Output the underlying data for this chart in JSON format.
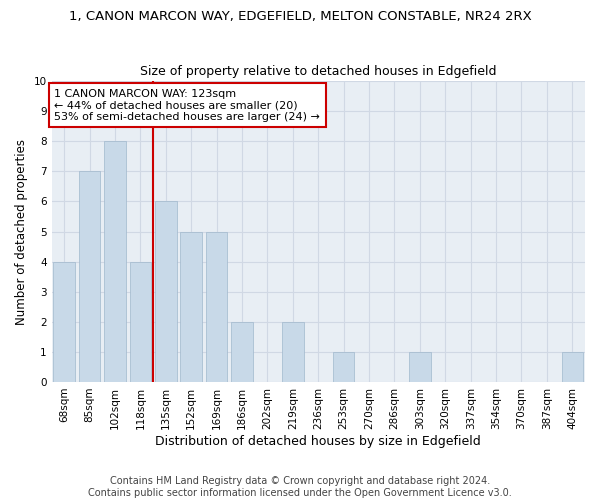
{
  "title": "1, CANON MARCON WAY, EDGEFIELD, MELTON CONSTABLE, NR24 2RX",
  "subtitle": "Size of property relative to detached houses in Edgefield",
  "xlabel": "Distribution of detached houses by size in Edgefield",
  "ylabel": "Number of detached properties",
  "categories": [
    "68sqm",
    "85sqm",
    "102sqm",
    "118sqm",
    "135sqm",
    "152sqm",
    "169sqm",
    "186sqm",
    "202sqm",
    "219sqm",
    "236sqm",
    "253sqm",
    "270sqm",
    "286sqm",
    "303sqm",
    "320sqm",
    "337sqm",
    "354sqm",
    "370sqm",
    "387sqm",
    "404sqm"
  ],
  "values": [
    4,
    7,
    8,
    4,
    6,
    5,
    5,
    2,
    0,
    2,
    0,
    1,
    0,
    0,
    1,
    0,
    0,
    0,
    0,
    0,
    1
  ],
  "bar_color": "#c8d9e8",
  "bar_edgecolor": "#a0b8cc",
  "vline_x": 3.5,
  "vline_color": "#cc0000",
  "annotation_text": "1 CANON MARCON WAY: 123sqm\n← 44% of detached houses are smaller (20)\n53% of semi-detached houses are larger (24) →",
  "annotation_box_color": "#ffffff",
  "annotation_box_edgecolor": "#cc0000",
  "ylim": [
    0,
    10
  ],
  "yticks": [
    0,
    1,
    2,
    3,
    4,
    5,
    6,
    7,
    8,
    9,
    10
  ],
  "grid_color": "#d0d8e4",
  "bg_color": "#e8eef4",
  "footer": "Contains HM Land Registry data © Crown copyright and database right 2024.\nContains public sector information licensed under the Open Government Licence v3.0.",
  "title_fontsize": 9.5,
  "subtitle_fontsize": 9,
  "xlabel_fontsize": 9,
  "ylabel_fontsize": 8.5,
  "tick_fontsize": 7.5,
  "annotation_fontsize": 8,
  "footer_fontsize": 7
}
